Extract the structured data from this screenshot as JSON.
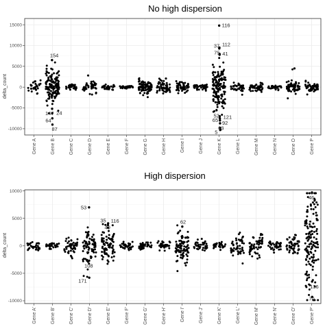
{
  "chart_data": [
    {
      "type": "scatter",
      "title": "No high dispersion",
      "xlabel": "",
      "ylabel": "delta_count",
      "ylim": [
        -11500,
        16500
      ],
      "yticks": [
        -10000,
        -5000,
        0,
        5000,
        10000,
        15000
      ],
      "categories": [
        "Gene A",
        "Gene B",
        "Gene C",
        "Gene D",
        "Gene E",
        "Gene F",
        "Gene G",
        "Gene H",
        "Gene I",
        "Gene J",
        "Gene K",
        "Gene L",
        "Gene M",
        "Gene N",
        "Gene O",
        "Gene P"
      ],
      "spread": [
        700,
        2100,
        300,
        650,
        350,
        180,
        900,
        750,
        650,
        350,
        2800,
        550,
        450,
        250,
        900,
        700
      ],
      "points_per_gene": [
        30,
        150,
        30,
        40,
        30,
        30,
        90,
        60,
        50,
        40,
        150,
        40,
        40,
        30,
        60,
        50
      ],
      "labeled_points": [
        {
          "gene": "Gene B",
          "value": 6500,
          "label": "154"
        },
        {
          "gene": "Gene B",
          "value": -5200,
          "label": "147"
        },
        {
          "gene": "Gene B",
          "value": -6300,
          "label": "24"
        },
        {
          "gene": "Gene B",
          "value": -7500,
          "label": "64"
        },
        {
          "gene": "Gene B",
          "value": -9000,
          "label": "87"
        },
        {
          "gene": "Gene K",
          "value": 14800,
          "label": "116"
        },
        {
          "gene": "Gene K",
          "value": 9300,
          "label": "37"
        },
        {
          "gene": "Gene K",
          "value": 9500,
          "label": "112"
        },
        {
          "gene": "Gene K",
          "value": 8000,
          "label": "75"
        },
        {
          "gene": "Gene K",
          "value": 7800,
          "label": "41"
        },
        {
          "gene": "Gene K",
          "value": -7000,
          "label": "52"
        },
        {
          "gene": "Gene K",
          "value": -7500,
          "label": "121"
        },
        {
          "gene": "Gene K",
          "value": -8000,
          "label": "65"
        },
        {
          "gene": "Gene K",
          "value": -8700,
          "label": "92"
        },
        {
          "gene": "Gene K",
          "value": -9800,
          "label": "63"
        },
        {
          "gene": "Gene K",
          "value": -10300,
          "label": "5"
        }
      ],
      "extra_points": [
        {
          "gene": "Gene D",
          "value": 2800
        },
        {
          "gene": "Gene O",
          "value": 4500
        }
      ]
    },
    {
      "type": "scatter",
      "title": "High dispersion",
      "xlabel": "",
      "ylabel": "delta_count",
      "ylim": [
        -10500,
        10200
      ],
      "yticks": [
        -10000,
        -5000,
        0,
        5000,
        10000
      ],
      "categories": [
        "Gene A'",
        "Gene B'",
        "Gene C'",
        "Gene D'",
        "Gene E'",
        "Gene F'",
        "Gene G'",
        "Gene H'",
        "Gene I'",
        "Gene J'",
        "Gene K'",
        "Gene L'",
        "Gene M'",
        "Gene N'",
        "Gene O'",
        "Gene P'"
      ],
      "spread": [
        450,
        300,
        900,
        1700,
        1600,
        350,
        400,
        400,
        1500,
        450,
        300,
        1000,
        1100,
        500,
        800,
        5500
      ],
      "points_per_gene": [
        30,
        30,
        50,
        80,
        80,
        30,
        40,
        40,
        90,
        40,
        30,
        50,
        60,
        40,
        50,
        150
      ],
      "labeled_points": [
        {
          "gene": "Gene D'",
          "value": 7000,
          "label": "53"
        },
        {
          "gene": "Gene D'",
          "value": -2700,
          "label": "108"
        },
        {
          "gene": "Gene D'",
          "value": -5800,
          "label": "171"
        },
        {
          "gene": "Gene E'",
          "value": 3800,
          "label": "35"
        },
        {
          "gene": "Gene E'",
          "value": 3300,
          "label": "40"
        },
        {
          "gene": "Gene E'",
          "value": 4100,
          "label": "116"
        },
        {
          "gene": "Gene I'",
          "value": 3500,
          "label": "62"
        },
        {
          "gene": "Gene P'",
          "value": 9700,
          "label": "46"
        },
        {
          "gene": "Gene P'",
          "value": -6500,
          "label": "136"
        },
        {
          "gene": "Gene P'",
          "value": -9300,
          "label": "70"
        }
      ],
      "extra_points": []
    }
  ],
  "colors": {
    "point": "#000000",
    "panel_border": "#333333",
    "grid_major": "#ebebeb",
    "grid_minor": "#f5f5f5",
    "background": "#ffffff"
  }
}
